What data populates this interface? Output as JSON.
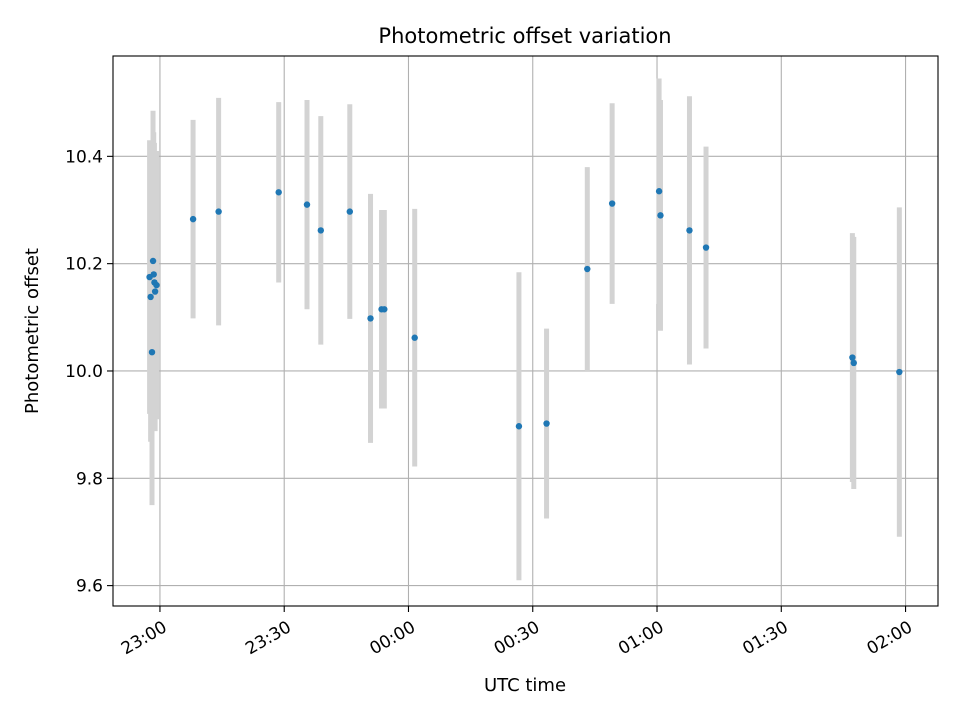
{
  "chart_data": {
    "type": "scatter",
    "title": "Photometric offset variation",
    "xlabel": "UTC time",
    "ylabel": "Photometric offset",
    "x_ticks": [
      "23:00",
      "23:30",
      "00:00",
      "00:30",
      "01:00",
      "01:30",
      "02:00"
    ],
    "y_ticks": [
      "9.6",
      "9.8",
      "10.0",
      "10.2",
      "10.4"
    ],
    "xlim": [
      "22:48:40",
      "02:07:50"
    ],
    "ylim": [
      9.562,
      10.587
    ],
    "grid": true,
    "colors": {
      "point": "#1f77b4",
      "errorbar": "#d3d3d3",
      "grid": "#b0b0b0"
    },
    "points": [
      {
        "x": "22:57:30",
        "y": 10.175,
        "err": 0.255
      },
      {
        "x": "22:57:45",
        "y": 10.138,
        "err": 0.27
      },
      {
        "x": "22:58:05",
        "y": 10.035,
        "err": 0.285
      },
      {
        "x": "22:58:20",
        "y": 10.205,
        "err": 0.28
      },
      {
        "x": "22:58:30",
        "y": 10.18,
        "err": 0.265
      },
      {
        "x": "22:58:40",
        "y": 10.165,
        "err": 0.26
      },
      {
        "x": "22:58:50",
        "y": 10.148,
        "err": 0.26
      },
      {
        "x": "22:59:10",
        "y": 10.16,
        "err": 0.25
      },
      {
        "x": "23:08:00",
        "y": 10.283,
        "err": 0.185
      },
      {
        "x": "23:14:10",
        "y": 10.297,
        "err": 0.212
      },
      {
        "x": "23:28:40",
        "y": 10.333,
        "err": 0.168
      },
      {
        "x": "23:35:30",
        "y": 10.31,
        "err": 0.195
      },
      {
        "x": "23:38:50",
        "y": 10.262,
        "err": 0.213
      },
      {
        "x": "23:45:50",
        "y": 10.297,
        "err": 0.2
      },
      {
        "x": "23:50:50",
        "y": 10.098,
        "err": 0.232
      },
      {
        "x": "23:53:30",
        "y": 10.115,
        "err": 0.185
      },
      {
        "x": "23:54:10",
        "y": 10.115,
        "err": 0.185
      },
      {
        "x": "00:01:30",
        "y": 10.062,
        "err": 0.24
      },
      {
        "x": "00:26:40",
        "y": 9.897,
        "err": 0.287
      },
      {
        "x": "00:33:20",
        "y": 9.902,
        "err": 0.177
      },
      {
        "x": "00:43:10",
        "y": 10.19,
        "err": 0.19
      },
      {
        "x": "00:49:10",
        "y": 10.312,
        "err": 0.187
      },
      {
        "x": "01:00:30",
        "y": 10.335,
        "err": 0.21
      },
      {
        "x": "01:00:50",
        "y": 10.29,
        "err": 0.215
      },
      {
        "x": "01:07:50",
        "y": 10.262,
        "err": 0.25
      },
      {
        "x": "01:11:50",
        "y": 10.23,
        "err": 0.188
      },
      {
        "x": "01:47:10",
        "y": 10.025,
        "err": 0.232
      },
      {
        "x": "01:47:30",
        "y": 10.015,
        "err": 0.235
      },
      {
        "x": "01:58:30",
        "y": 9.998,
        "err": 0.307
      }
    ]
  }
}
